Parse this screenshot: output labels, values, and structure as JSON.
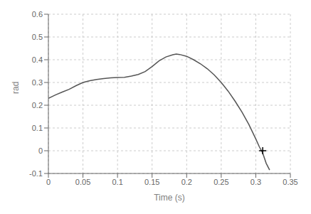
{
  "chart_data": {
    "type": "line",
    "xlabel": "Time (s)",
    "ylabel": "rad",
    "xlim": [
      0,
      0.35
    ],
    "ylim": [
      -0.1,
      0.6
    ],
    "xticks": [
      0,
      0.05,
      0.1,
      0.15,
      0.2,
      0.25,
      0.3,
      0.35
    ],
    "yticks": [
      -0.1,
      0,
      0.1,
      0.2,
      0.3,
      0.4,
      0.5,
      0.6
    ],
    "grid": true,
    "series": [
      {
        "type": "line",
        "color": "#555555",
        "x": [
          0.0,
          0.01,
          0.02,
          0.03,
          0.04,
          0.05,
          0.06,
          0.07,
          0.08,
          0.09,
          0.1,
          0.11,
          0.12,
          0.13,
          0.14,
          0.15,
          0.16,
          0.17,
          0.18,
          0.185,
          0.19,
          0.2,
          0.21,
          0.22,
          0.23,
          0.24,
          0.25,
          0.26,
          0.27,
          0.28,
          0.29,
          0.3,
          0.305,
          0.31,
          0.315,
          0.32
        ],
        "values": [
          0.23,
          0.245,
          0.258,
          0.27,
          0.286,
          0.3,
          0.308,
          0.313,
          0.317,
          0.32,
          0.322,
          0.323,
          0.328,
          0.335,
          0.348,
          0.37,
          0.395,
          0.412,
          0.422,
          0.425,
          0.423,
          0.415,
          0.4,
          0.382,
          0.36,
          0.333,
          0.3,
          0.262,
          0.218,
          0.17,
          0.115,
          0.052,
          0.018,
          -0.01,
          -0.055,
          -0.085
        ]
      },
      {
        "type": "scatter",
        "color": "#000000",
        "marker": "plus",
        "x": [
          0.31
        ],
        "values": [
          0.0
        ]
      }
    ]
  }
}
